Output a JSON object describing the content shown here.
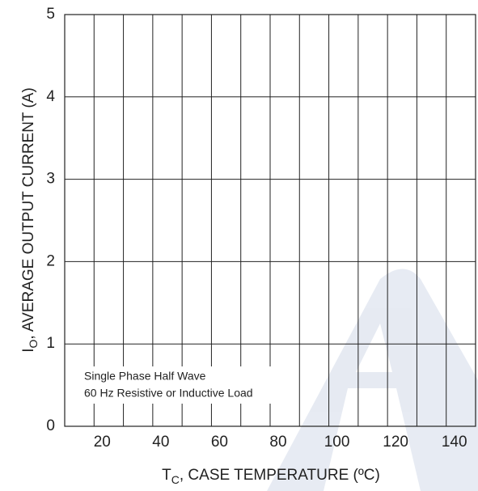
{
  "chart_data": {
    "type": "line",
    "xlim": [
      10,
      150
    ],
    "xticks": [
      20,
      40,
      60,
      80,
      100,
      120,
      140
    ],
    "x_minor_ticks": [
      10,
      30,
      50,
      70,
      90,
      110,
      130,
      150
    ],
    "ylim": [
      0,
      5
    ],
    "yticks": [
      0,
      1,
      2,
      3,
      4,
      5
    ],
    "grid": true,
    "xlabel": {
      "main": "T",
      "sub": "C",
      "rest": ", CASE TEMPERATURE (ºC)"
    },
    "ylabel": {
      "main": "I",
      "sub": "O",
      "rest": ",  AVERAGE OUTPUT CURRENT (A)"
    },
    "annotation": [
      "Single Phase Half Wave",
      "60 Hz Resistive or Inductive Load"
    ]
  }
}
